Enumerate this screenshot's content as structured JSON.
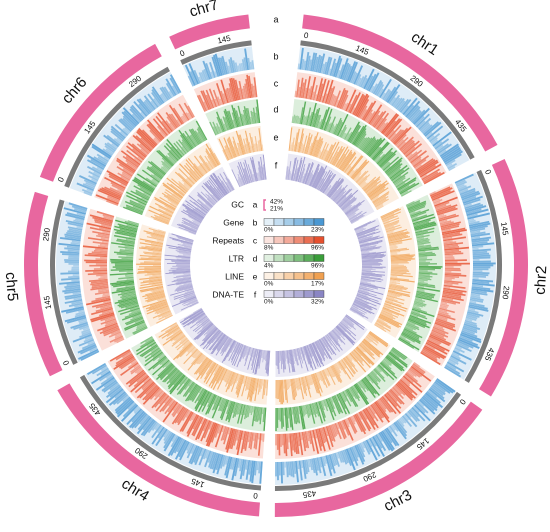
{
  "chart_data": {
    "type": "circos",
    "chromosomes": [
      {
        "name": "chr1",
        "ticks": [
          "0",
          "145",
          "290",
          "435"
        ]
      },
      {
        "name": "chr2",
        "ticks": [
          "0",
          "145",
          "290",
          "435"
        ]
      },
      {
        "name": "chr3",
        "ticks": [
          "0",
          "145",
          "290",
          "435"
        ]
      },
      {
        "name": "chr4",
        "ticks": [
          "0",
          "145",
          "290",
          "435"
        ]
      },
      {
        "name": "chr5",
        "ticks": [
          "0",
          "145",
          "290"
        ]
      },
      {
        "name": "chr6",
        "ticks": [
          "0",
          "145",
          "290"
        ]
      },
      {
        "name": "chr7",
        "ticks": [
          "0",
          "145"
        ]
      }
    ],
    "tracks": [
      {
        "id": "a",
        "name": "GC",
        "range": [
          "21%",
          "42%"
        ],
        "color": "#e8679f"
      },
      {
        "id": "b",
        "name": "Gene",
        "range": [
          "0%",
          "23%"
        ],
        "color": "#4a98d3"
      },
      {
        "id": "c",
        "name": "Repeats",
        "range": [
          "8%",
          "96%"
        ],
        "color": "#e6502e"
      },
      {
        "id": "d",
        "name": "LTR",
        "range": [
          "4%",
          "96%"
        ],
        "color": "#3a9e3a"
      },
      {
        "id": "e",
        "name": "LINE",
        "range": [
          "0%",
          "17%"
        ],
        "color": "#f0a050"
      },
      {
        "id": "f",
        "name": "DNA-TE",
        "range": [
          "0%",
          "32%"
        ],
        "color": "#8a85c4"
      }
    ]
  }
}
